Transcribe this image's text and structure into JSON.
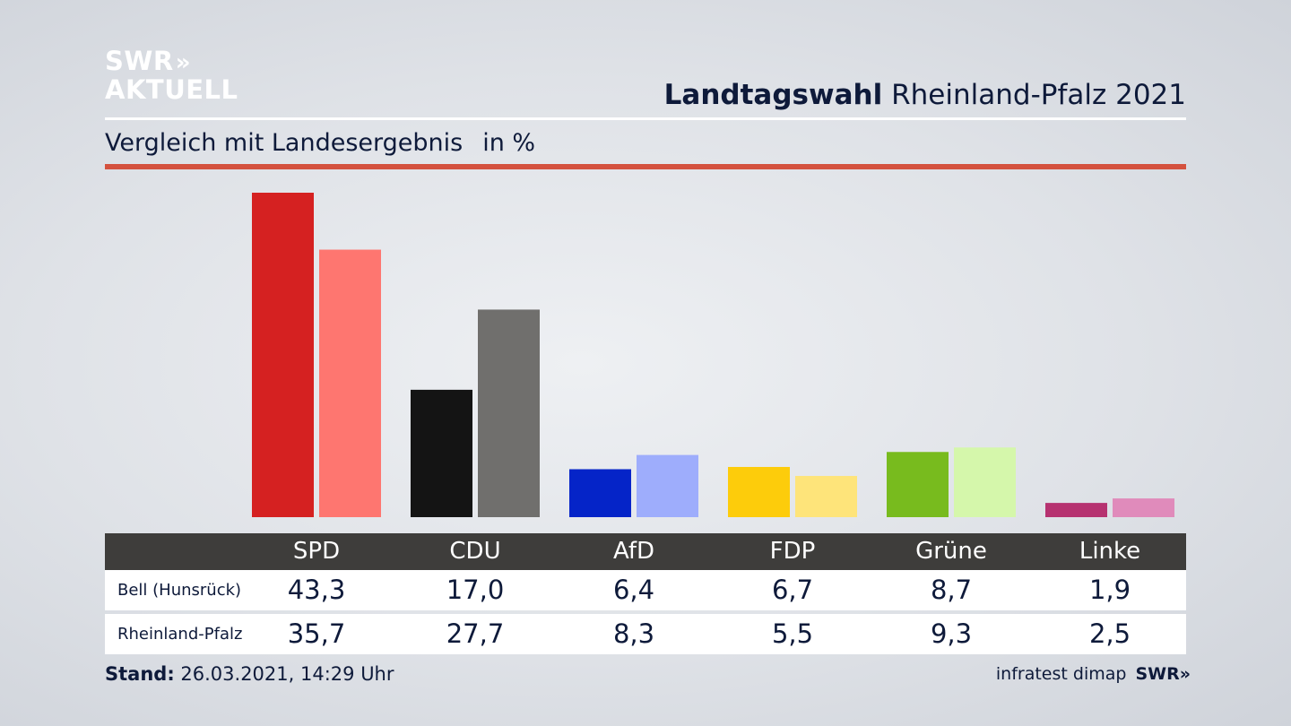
{
  "logo": {
    "line1": "SWR",
    "chevrons": "»",
    "line2": "AKTUELL"
  },
  "header": {
    "title_bold": "Landtagswahl",
    "title_rest": "Rheinland-Pfalz 2021"
  },
  "subtitle": {
    "text": "Vergleich mit Landesergebnis",
    "unit": "in %"
  },
  "chart_data": {
    "type": "bar",
    "title": "Landtagswahl Rheinland-Pfalz 2021",
    "subtitle": "Vergleich mit Landesergebnis in %",
    "categories": [
      "SPD",
      "CDU",
      "AfD",
      "FDP",
      "Grüne",
      "Linke"
    ],
    "series": [
      {
        "name": "Bell (Hunsrück)",
        "values": [
          43.3,
          17.0,
          6.4,
          6.7,
          8.7,
          1.9
        ],
        "labels": [
          "43,3",
          "17,0",
          "6,4",
          "6,7",
          "8,7",
          "1,9"
        ],
        "colors": [
          "#d52121",
          "#141414",
          "#0524c8",
          "#fdcc0b",
          "#78bb1e",
          "#b63270"
        ]
      },
      {
        "name": "Rheinland-Pfalz",
        "values": [
          35.7,
          27.7,
          8.3,
          5.5,
          9.3,
          2.5
        ],
        "labels": [
          "35,7",
          "27,7",
          "8,3",
          "5,5",
          "9,3",
          "2,5"
        ],
        "colors": [
          "#fe7670",
          "#706f6d",
          "#9eadfc",
          "#fee47a",
          "#d5f7ab",
          "#e08bbb"
        ]
      }
    ],
    "ylim": [
      0,
      45
    ],
    "grid": false,
    "legend": "table-below"
  },
  "footer": {
    "stand_label": "Stand:",
    "stand_value": "26.03.2021, 14:29 Uhr",
    "source": "infratest dimap",
    "brand": "SWR",
    "brand_chevrons": "»"
  }
}
